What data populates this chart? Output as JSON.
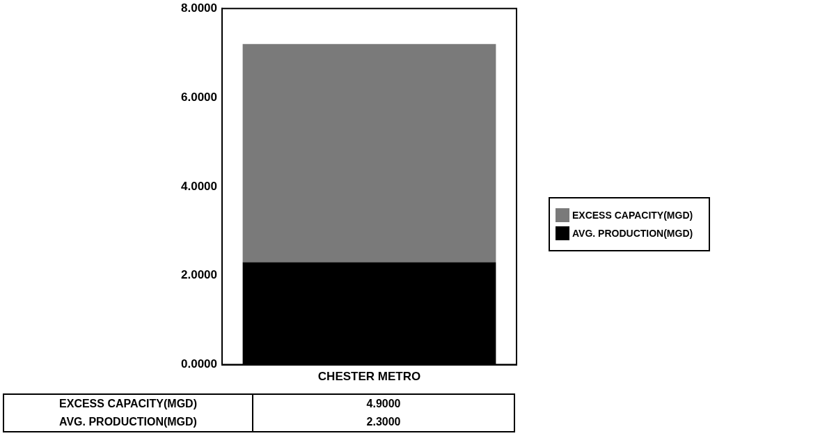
{
  "chart_data": {
    "type": "bar",
    "stacked": true,
    "categories": [
      "CHESTER METRO"
    ],
    "series": [
      {
        "name": "AVG. PRODUCTION(MGD)",
        "color": "#000000",
        "values": [
          2.3
        ]
      },
      {
        "name": "EXCESS CAPACITY(MGD)",
        "color": "#7a7a7a",
        "values": [
          4.9
        ]
      }
    ],
    "ylim": [
      0,
      8
    ],
    "yticks": [
      {
        "value": 0,
        "label": "0.0000"
      },
      {
        "value": 2,
        "label": "2.0000"
      },
      {
        "value": 4,
        "label": "4.0000"
      },
      {
        "value": 6,
        "label": "6.0000"
      },
      {
        "value": 8,
        "label": "8.0000"
      }
    ],
    "value_labels": [
      [
        "2.3000"
      ],
      [
        "4.9000"
      ]
    ],
    "grid": false,
    "legend": "right"
  }
}
